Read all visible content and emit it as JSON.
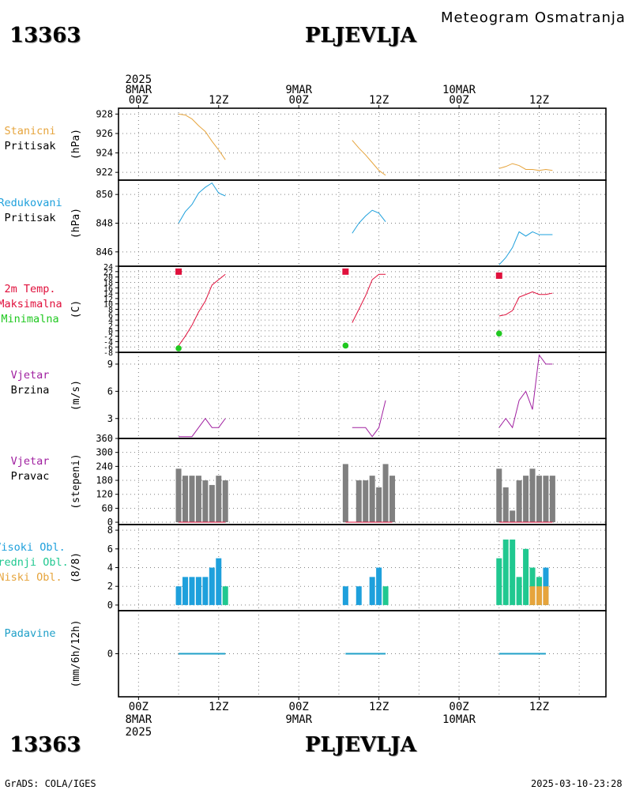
{
  "header": {
    "station_id": "13363",
    "station_name": "PLJEVLJA",
    "meteogram_title": "Meteogram Osmatranja"
  },
  "footer": {
    "station_id": "13363",
    "station_name": "PLJEVLJA",
    "credit": "GrADS: COLA/IGES",
    "timestamp": "2025-03-10-23:28"
  },
  "time_axis": {
    "top_labels": [
      {
        "hour": 0,
        "lines": [
          "2025",
          "8MAR",
          "00Z"
        ]
      },
      {
        "hour": 12,
        "lines": [
          "12Z"
        ]
      },
      {
        "hour": 24,
        "lines": [
          "9MAR",
          "00Z"
        ]
      },
      {
        "hour": 36,
        "lines": [
          "12Z"
        ]
      },
      {
        "hour": 48,
        "lines": [
          "10MAR",
          "00Z"
        ]
      },
      {
        "hour": 60,
        "lines": [
          "12Z"
        ]
      }
    ],
    "bottom_labels": [
      {
        "hour": 0,
        "lines": [
          "00Z",
          "8MAR",
          "2025"
        ]
      },
      {
        "hour": 12,
        "lines": [
          "12Z"
        ]
      },
      {
        "hour": 24,
        "lines": [
          "00Z",
          "9MAR"
        ]
      },
      {
        "hour": 36,
        "lines": [
          "12Z"
        ]
      },
      {
        "hour": 48,
        "lines": [
          "00Z",
          "10MAR"
        ]
      },
      {
        "hour": 60,
        "lines": [
          "12Z"
        ]
      }
    ],
    "range_hours": [
      -3,
      70
    ]
  },
  "colors": {
    "pressure_station": "#e6a43c",
    "pressure_reduced": "#1ea0dc",
    "temp_max": "#e0103c",
    "temp_min": "#20c820",
    "wind": "#a020a0",
    "bar_gray": "#808080",
    "cloud_high": "#1ea0dc",
    "cloud_mid": "#20c890",
    "cloud_low": "#e6a43c",
    "precip": "#20a0c8"
  },
  "chart_data": [
    {
      "type": "line",
      "id": "station_pressure",
      "labels": [
        "Stanicni",
        "Pritisak"
      ],
      "ylabel": "(hPa)",
      "ylim": [
        921.2,
        928.6
      ],
      "yticks": [
        922,
        924,
        926,
        928
      ],
      "series": [
        {
          "x": [
            6,
            7,
            8,
            9,
            10,
            11,
            12,
            13
          ],
          "values": [
            928.0,
            927.9,
            927.5,
            926.8,
            926.2,
            925.2,
            924.3,
            923.3
          ]
        },
        {
          "x": [
            32,
            33,
            34,
            35,
            36,
            37
          ],
          "values": [
            925.3,
            924.5,
            923.8,
            923.0,
            922.2,
            921.7
          ]
        },
        {
          "x": [
            54,
            55,
            56,
            57,
            58,
            59,
            60,
            61,
            62
          ],
          "values": [
            922.4,
            922.6,
            922.9,
            922.7,
            922.3,
            922.3,
            922.2,
            922.3,
            922.2
          ]
        }
      ]
    },
    {
      "type": "line",
      "id": "reduced_pressure",
      "labels": [
        "Redukovani",
        "Pritisak"
      ],
      "ylabel": "(hPa)",
      "ylim": [
        845.0,
        851.0
      ],
      "yticks": [
        846,
        848,
        850
      ],
      "series": [
        {
          "x": [
            6,
            7,
            8,
            9,
            10,
            11,
            12,
            13
          ],
          "values": [
            848.0,
            848.8,
            849.3,
            850.1,
            850.5,
            850.8,
            850.1,
            849.9
          ]
        },
        {
          "x": [
            32,
            33,
            34,
            35,
            36,
            37
          ],
          "values": [
            847.3,
            848.0,
            848.5,
            848.9,
            848.7,
            848.1
          ]
        },
        {
          "x": [
            54,
            55,
            56,
            57,
            58,
            59,
            60,
            61,
            62
          ],
          "values": [
            845.1,
            845.6,
            846.3,
            847.4,
            847.1,
            847.4,
            847.2,
            847.2,
            847.2
          ]
        }
      ]
    },
    {
      "type": "line",
      "id": "temperature",
      "labels": [
        "2m Temp.",
        "Maksimalna",
        "Minimalna"
      ],
      "ylabel": "(C)",
      "ylim": [
        -8,
        24
      ],
      "yticks": [
        -8,
        -6,
        -4,
        -2,
        0,
        2,
        4,
        6,
        8,
        10,
        12,
        14,
        16,
        18,
        20,
        22,
        24
      ],
      "series": [
        {
          "x": [
            6,
            7,
            8,
            9,
            10,
            11,
            12,
            13
          ],
          "values": [
            -5.5,
            -2,
            2,
            7,
            11,
            17,
            19,
            21
          ]
        },
        {
          "x": [
            32,
            33,
            34,
            35,
            36,
            37
          ],
          "values": [
            3,
            8,
            13,
            19,
            21,
            21
          ]
        },
        {
          "x": [
            54,
            55,
            56,
            57,
            58,
            59,
            60,
            61,
            62
          ],
          "values": [
            5.5,
            6,
            7.5,
            12.5,
            13.5,
            14.5,
            13.5,
            13.5,
            14
          ]
        }
      ],
      "max_points": [
        {
          "x": 6,
          "value": 22
        },
        {
          "x": 31,
          "value": 22
        },
        {
          "x": 54,
          "value": 20.5
        }
      ],
      "min_points": [
        {
          "x": 6,
          "value": -6.5
        },
        {
          "x": 31,
          "value": -5.5
        },
        {
          "x": 54,
          "value": -1
        }
      ]
    },
    {
      "type": "line",
      "id": "wind_speed",
      "labels": [
        "Vjetar",
        "Brzina"
      ],
      "ylabel": "(m/s)",
      "ylim": [
        0.8,
        10.3
      ],
      "yticks": [
        3,
        6,
        9
      ],
      "series": [
        {
          "x": [
            6,
            7,
            8,
            9,
            10,
            11,
            12,
            13
          ],
          "values": [
            1.0,
            1.0,
            1.0,
            2.0,
            3.0,
            2.0,
            2.0,
            3.0
          ]
        },
        {
          "x": [
            32,
            33,
            34,
            35,
            36,
            37
          ],
          "values": [
            2.0,
            2.0,
            2.0,
            1.0,
            2.0,
            5.0
          ]
        },
        {
          "x": [
            54,
            55,
            56,
            57,
            58,
            59,
            60,
            61,
            62
          ],
          "values": [
            2.0,
            3.0,
            2.0,
            5.0,
            6.0,
            4.0,
            10.0,
            9.0,
            9.0
          ]
        }
      ]
    },
    {
      "type": "bar",
      "id": "wind_direction",
      "labels": [
        "Vjetar",
        "Pravac"
      ],
      "ylabel": "(stepeni)",
      "ylim": [
        -10,
        360
      ],
      "yticks": [
        0,
        60,
        120,
        180,
        240,
        300,
        360
      ],
      "series": [
        {
          "x": [
            6,
            7,
            8,
            9,
            10,
            11,
            12,
            13
          ],
          "values": [
            230,
            200,
            200,
            200,
            180,
            160,
            200,
            180
          ]
        },
        {
          "x": [
            31,
            33,
            34,
            35,
            36,
            37,
            38
          ],
          "values": [
            250,
            180,
            180,
            200,
            150,
            250,
            200
          ]
        },
        {
          "x": [
            54,
            55,
            56,
            57,
            58,
            59,
            60,
            61,
            62
          ],
          "values": [
            230,
            150,
            50,
            180,
            200,
            230,
            200,
            200,
            200
          ]
        }
      ]
    },
    {
      "type": "bar",
      "id": "cloud_cover",
      "labels": [
        "Visoki Obl.",
        "Srednji Obl.",
        "Niski Obl."
      ],
      "ylabel": "(8/8)",
      "ylim": [
        -0.6,
        8.6
      ],
      "yticks": [
        0,
        2,
        4,
        6,
        8
      ],
      "bars": [
        {
          "x": 6,
          "value": 2,
          "layer": "high"
        },
        {
          "x": 7,
          "value": 3,
          "layer": "high"
        },
        {
          "x": 8,
          "value": 3,
          "layer": "high"
        },
        {
          "x": 9,
          "value": 3,
          "layer": "high"
        },
        {
          "x": 10,
          "value": 3,
          "layer": "high"
        },
        {
          "x": 11,
          "value": 4,
          "layer": "high"
        },
        {
          "x": 12,
          "value": 5,
          "layer": "high"
        },
        {
          "x": 13,
          "value": 2,
          "layer": "mid"
        },
        {
          "x": 31,
          "value": 2,
          "layer": "high"
        },
        {
          "x": 33,
          "value": 2,
          "layer": "high"
        },
        {
          "x": 35,
          "value": 3,
          "layer": "high"
        },
        {
          "x": 36,
          "value": 4,
          "layer": "high"
        },
        {
          "x": 37,
          "value": 2,
          "layer": "mid"
        },
        {
          "x": 54,
          "value": 5,
          "layer": "mid"
        },
        {
          "x": 55,
          "value": 7,
          "layer": "mid"
        },
        {
          "x": 56,
          "value": 7,
          "layer": "mid"
        },
        {
          "x": 57,
          "value": 3,
          "layer": "mid"
        },
        {
          "x": 58,
          "value": 6,
          "layer": "mid"
        },
        {
          "x": 59,
          "value": 4,
          "layer": "mid"
        },
        {
          "x": 59,
          "value": 2,
          "layer": "low"
        },
        {
          "x": 60,
          "value": 3,
          "layer": "mid"
        },
        {
          "x": 60,
          "value": 2,
          "layer": "low"
        },
        {
          "x": 61,
          "value": 4,
          "layer": "high"
        },
        {
          "x": 61,
          "value": 2,
          "layer": "low"
        }
      ]
    },
    {
      "type": "line",
      "id": "precipitation",
      "labels": [
        "Padavine"
      ],
      "ylabel": "(mm/6h/12h)",
      "ylim": [
        -5,
        5
      ],
      "yticks": [
        0
      ],
      "series": [
        {
          "x": [
            6,
            13
          ],
          "values": [
            0,
            0
          ]
        },
        {
          "x": [
            31,
            37
          ],
          "values": [
            0,
            0
          ]
        },
        {
          "x": [
            54,
            61
          ],
          "values": [
            0,
            0
          ]
        }
      ]
    }
  ]
}
